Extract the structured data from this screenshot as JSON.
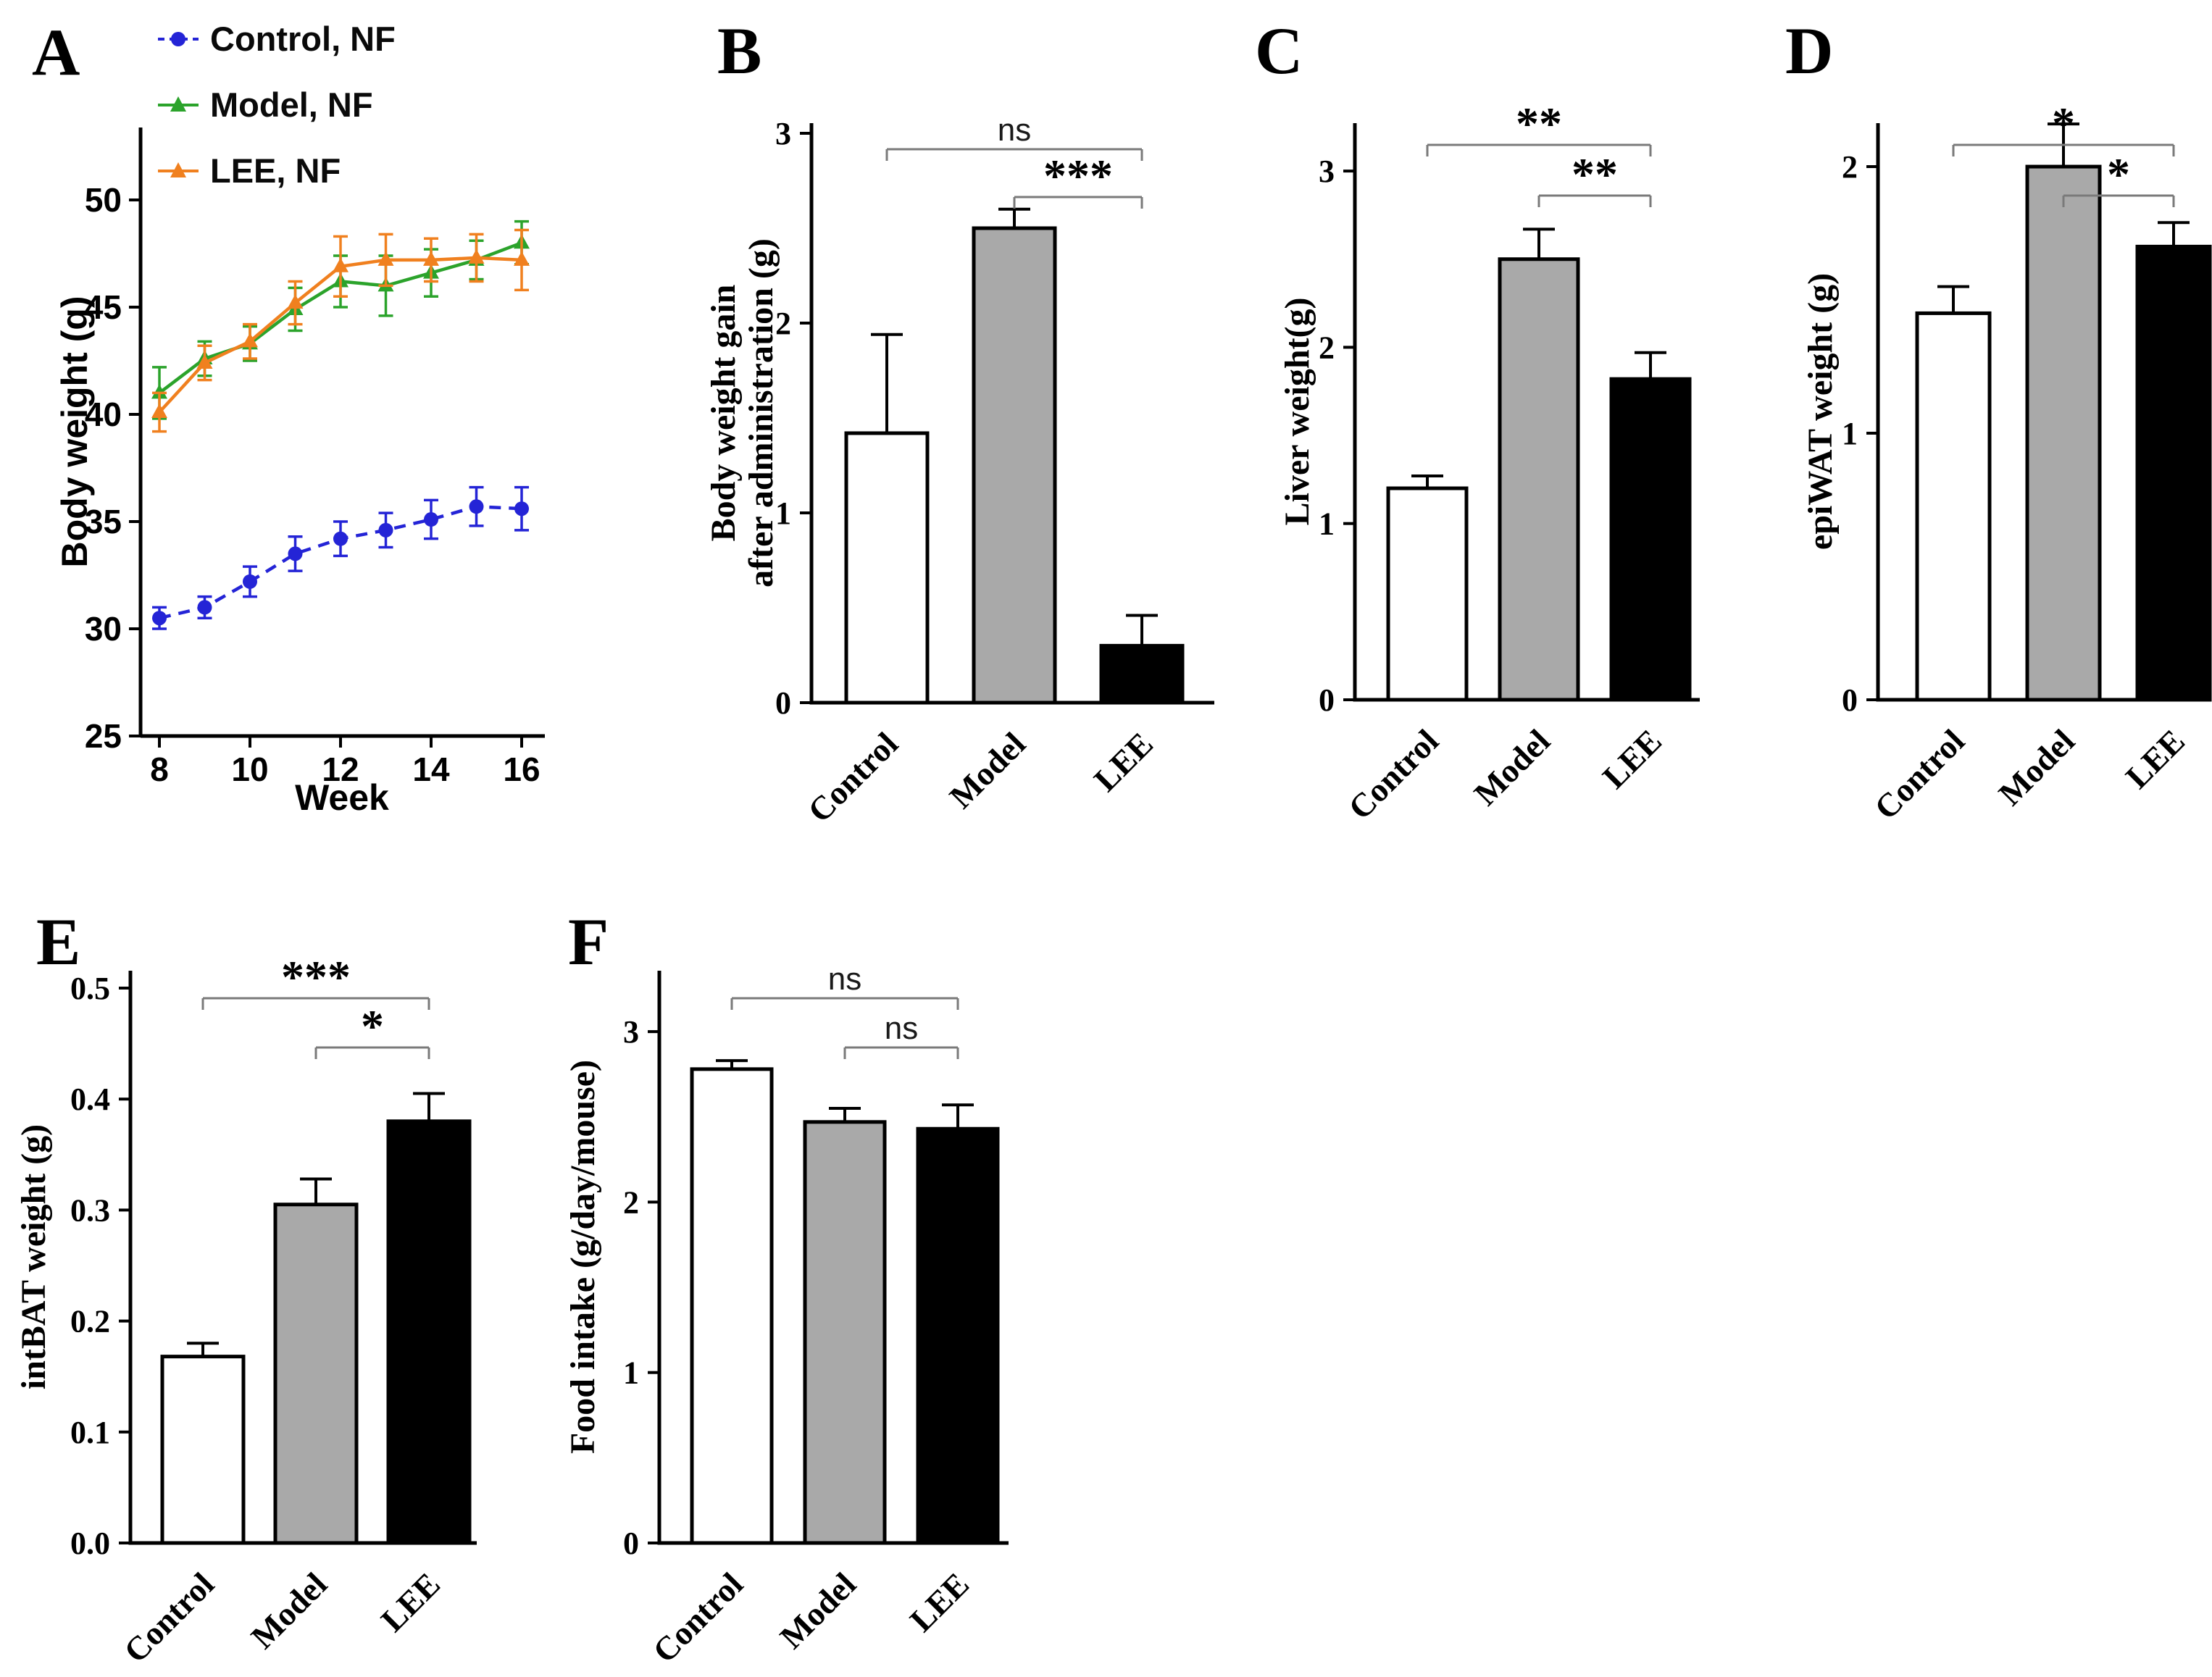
{
  "panels": [
    {
      "letter": "A"
    },
    {
      "letter": "B"
    },
    {
      "letter": "C"
    },
    {
      "letter": "D"
    },
    {
      "letter": "E"
    },
    {
      "letter": "F"
    }
  ],
  "chart_data": [
    {
      "type": "line",
      "panel": "A",
      "xlabel": "Week",
      "ylabel": "Body weight (g)",
      "xlim": [
        7.5,
        16.8
      ],
      "ylim": [
        25,
        53.4
      ],
      "grid": false,
      "legend_position": "top-left-outside",
      "xtick_values": [
        8,
        10,
        12,
        14,
        16
      ],
      "xtick_labels": [
        "8",
        "10",
        "12",
        "14",
        "16"
      ],
      "ytick_values": [
        25,
        30,
        35,
        40,
        45,
        50
      ],
      "ytick_labels": [
        "25",
        "30",
        "35",
        "40",
        "45",
        "50"
      ],
      "x": [
        8,
        9,
        10,
        11,
        12,
        13,
        14,
        15,
        16
      ],
      "series": [
        {
          "name": "Control, NF",
          "color": "#2424d6",
          "marker": "circle",
          "line_style": "dashed",
          "values": [
            30.5,
            31.0,
            32.2,
            33.5,
            34.2,
            34.6,
            35.1,
            35.7,
            35.6
          ],
          "errors": [
            0.5,
            0.5,
            0.7,
            0.8,
            0.8,
            0.8,
            0.9,
            0.9,
            1.0
          ]
        },
        {
          "name": "Model, NF",
          "color": "#2ba32b",
          "marker": "triangle",
          "line_style": "solid",
          "values": [
            41.0,
            42.6,
            43.3,
            44.9,
            46.2,
            46.0,
            46.6,
            47.2,
            48.0
          ],
          "errors": [
            1.2,
            0.8,
            0.8,
            1.0,
            1.2,
            1.4,
            1.1,
            0.9,
            1.0
          ]
        },
        {
          "name": "LEE, NF",
          "color": "#f0801f",
          "marker": "triangle",
          "line_style": "solid",
          "values": [
            40.1,
            42.4,
            43.4,
            45.2,
            46.9,
            47.2,
            47.2,
            47.3,
            47.2
          ],
          "errors": [
            0.9,
            0.8,
            0.8,
            1.0,
            1.4,
            1.2,
            1.0,
            1.1,
            1.4
          ]
        }
      ]
    },
    {
      "type": "bar",
      "panel": "B",
      "ylabel_lines": [
        "Body weight gain",
        "after administration (g)"
      ],
      "ylim": [
        0,
        3.05
      ],
      "ytick_values": [
        0,
        1,
        2,
        3
      ],
      "ytick_labels": [
        "0",
        "1",
        "2",
        "3"
      ],
      "categories": [
        "Control",
        "Model",
        "LEE"
      ],
      "bar_colors": [
        "#ffffff",
        "#a9a9a9",
        "#000000"
      ],
      "values": [
        1.42,
        2.5,
        0.3
      ],
      "errors": [
        0.52,
        0.1,
        0.16
      ],
      "significance": [
        {
          "pair": [
            0,
            2
          ],
          "label": "ns"
        },
        {
          "pair": [
            1,
            2
          ],
          "label": "***"
        }
      ]
    },
    {
      "type": "bar",
      "panel": "C",
      "ylabel_lines": [
        "Liver weight(g)"
      ],
      "ylim": [
        0,
        3.3
      ],
      "ytick_values": [
        0,
        1,
        2,
        3
      ],
      "ytick_labels": [
        "0",
        "1",
        "2",
        "3"
      ],
      "categories": [
        "Control",
        "Model",
        "LEE"
      ],
      "bar_colors": [
        "#ffffff",
        "#a9a9a9",
        "#000000"
      ],
      "values": [
        1.2,
        2.5,
        1.82
      ],
      "errors": [
        0.07,
        0.17,
        0.15
      ],
      "significance": [
        {
          "pair": [
            0,
            2
          ],
          "label": "**"
        },
        {
          "pair": [
            1,
            2
          ],
          "label": "**"
        }
      ]
    },
    {
      "type": "bar",
      "panel": "D",
      "ylabel_lines": [
        "epiWAT weight (g)"
      ],
      "ylim": [
        0,
        2.16
      ],
      "ytick_values": [
        0,
        1,
        2
      ],
      "ytick_labels": [
        "0",
        "1",
        "2"
      ],
      "categories": [
        "Control",
        "Model",
        "LEE"
      ],
      "bar_colors": [
        "#ffffff",
        "#a9a9a9",
        "#000000"
      ],
      "values": [
        1.45,
        2.0,
        1.7
      ],
      "errors": [
        0.1,
        0.16,
        0.09
      ],
      "significance": [
        {
          "pair": [
            0,
            2
          ],
          "label": "*"
        },
        {
          "pair": [
            1,
            2
          ],
          "label": "*"
        }
      ]
    },
    {
      "type": "bar",
      "panel": "E",
      "ylabel_lines": [
        "intBAT weight (g)"
      ],
      "ylim": [
        0,
        0.515
      ],
      "ytick_values": [
        0,
        0.1,
        0.2,
        0.3,
        0.4,
        0.5
      ],
      "ytick_labels": [
        "0.0",
        "0.1",
        "0.2",
        "0.3",
        "0.4",
        "0.5"
      ],
      "categories": [
        "Control",
        "Model",
        "LEE"
      ],
      "bar_colors": [
        "#ffffff",
        "#a9a9a9",
        "#000000"
      ],
      "values": [
        0.168,
        0.305,
        0.38
      ],
      "errors": [
        0.012,
        0.023,
        0.025
      ],
      "significance": [
        {
          "pair": [
            0,
            2
          ],
          "label": "***"
        },
        {
          "pair": [
            1,
            2
          ],
          "label": "*"
        }
      ]
    },
    {
      "type": "bar",
      "panel": "F",
      "ylabel_lines": [
        "Food intake (g/day/mouse)"
      ],
      "ylim": [
        0,
        3.36
      ],
      "ytick_values": [
        0,
        1,
        2,
        3
      ],
      "ytick_labels": [
        "0",
        "1",
        "2",
        "3"
      ],
      "categories": [
        "Control",
        "Model",
        "LEE"
      ],
      "bar_colors": [
        "#ffffff",
        "#a9a9a9",
        "#000000"
      ],
      "values": [
        2.78,
        2.47,
        2.43
      ],
      "errors": [
        0.05,
        0.08,
        0.14
      ],
      "significance": [
        {
          "pair": [
            0,
            2
          ],
          "label": "ns"
        },
        {
          "pair": [
            1,
            2
          ],
          "label": "ns"
        }
      ]
    }
  ]
}
